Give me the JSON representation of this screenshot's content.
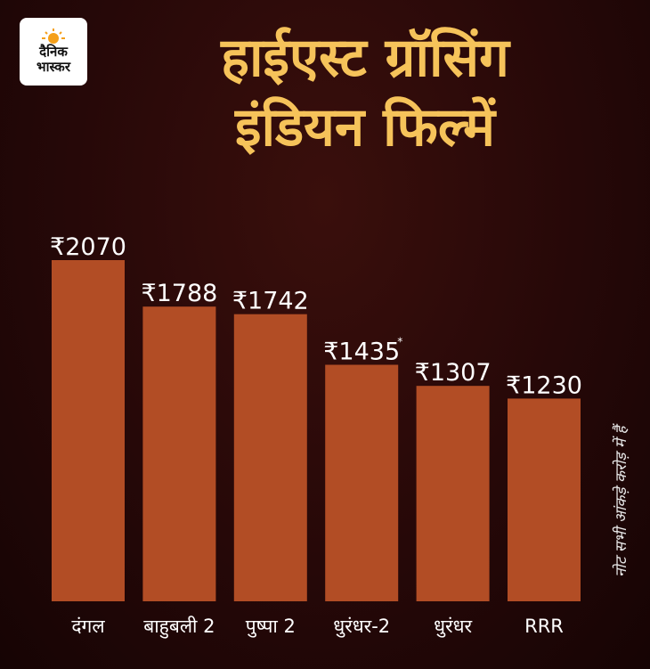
{
  "brand": {
    "line1": "दैनिक",
    "line2": "भास्कर",
    "logo_icon": "sun-logo-icon"
  },
  "title_line1": "हाईएस्ट ग्रॉसिंग",
  "title_line2": "इंडियन फिल्में",
  "note": "नोट सभी आंकड़े करोड़ में हैं",
  "colors": {
    "bar": "#b24d25",
    "title": "#f6c35a",
    "background": "#260808"
  },
  "chart_data": {
    "type": "bar",
    "title": "हाईएस्ट ग्रॉसिंग इंडियन फिल्में",
    "categories": [
      "दंगल",
      "बाहुबली 2",
      "पुष्पा 2",
      "धुरंधर-2",
      "धुरंधर",
      "RRR"
    ],
    "values": [
      2070,
      1788,
      1742,
      1435,
      1307,
      1230
    ],
    "value_labels": [
      "₹2070",
      "₹1788",
      "₹1742",
      "₹1435",
      "₹1307",
      "₹1230"
    ],
    "asterisk_index": 3,
    "unit_note": "नोट सभी आंकड़े करोड़ में हैं",
    "xlabel": "",
    "ylabel": "",
    "ylim": [
      0,
      2070
    ],
    "grid": false,
    "legend": "none"
  }
}
